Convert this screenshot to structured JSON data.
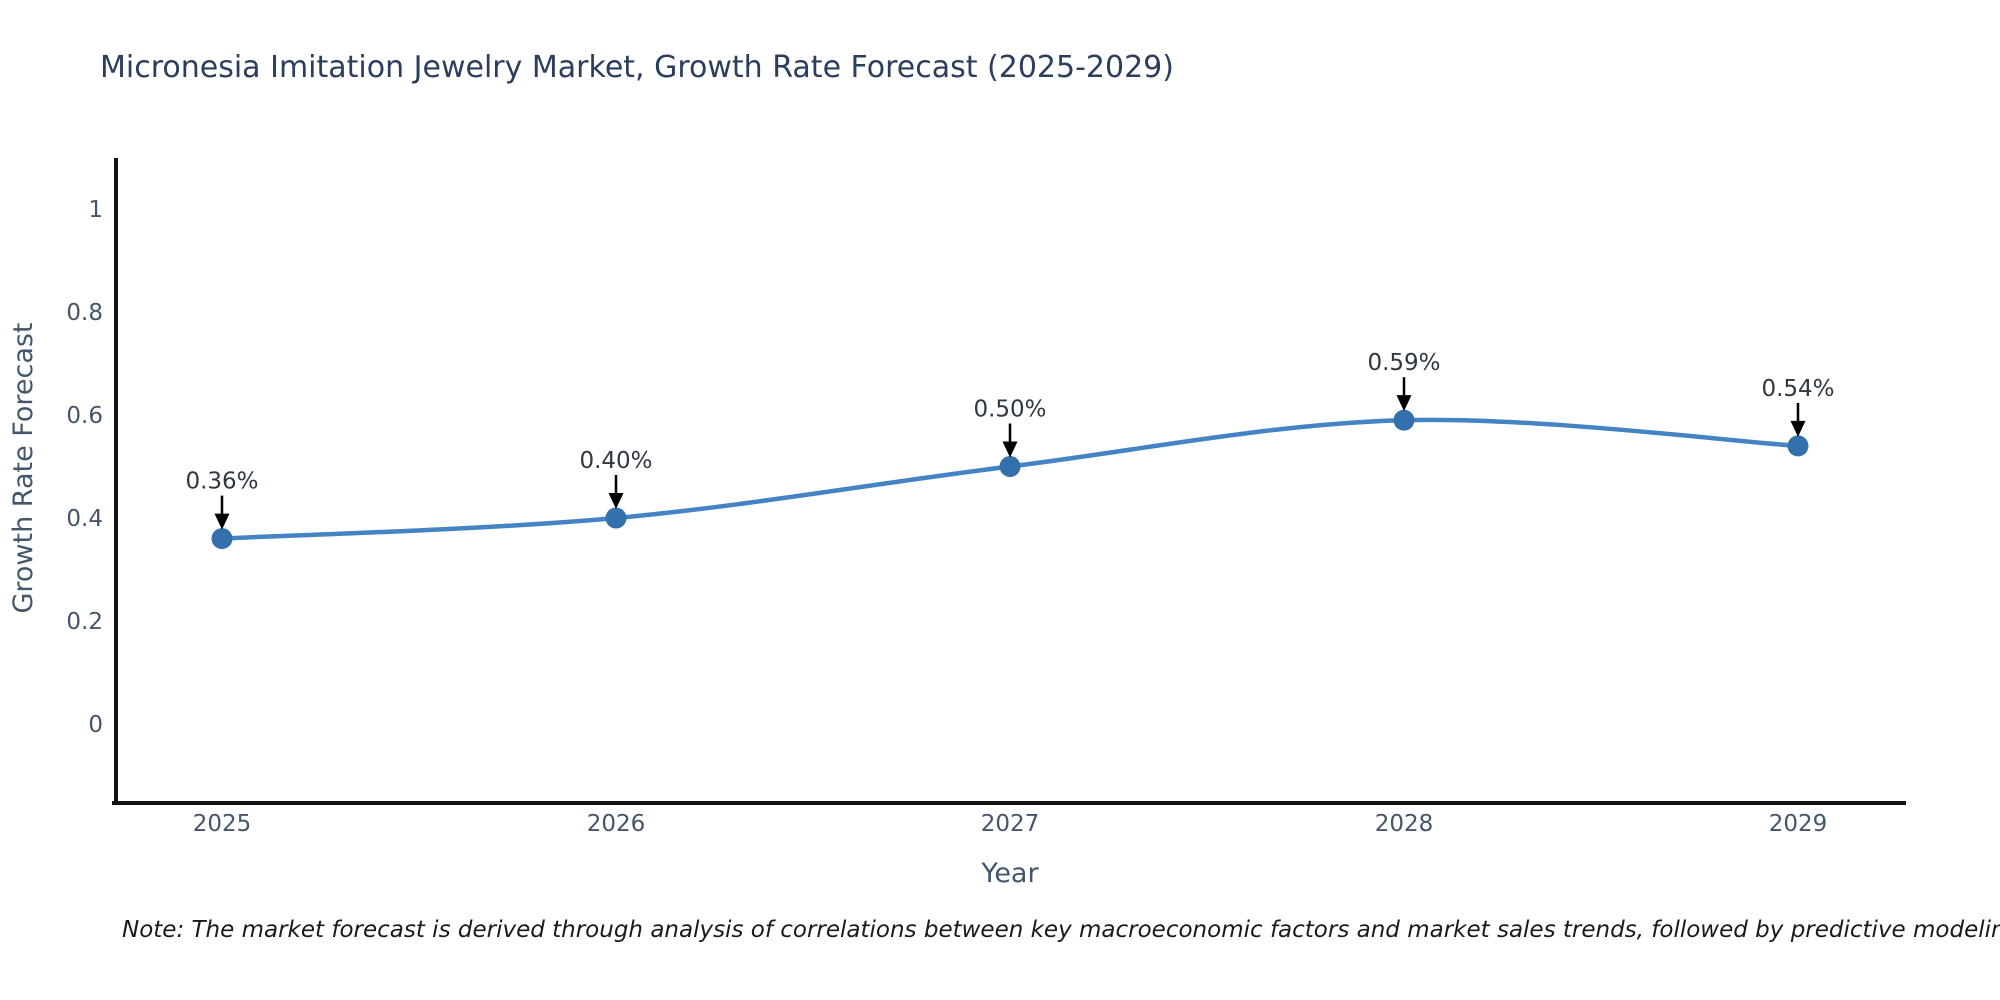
{
  "chart_data": {
    "type": "line",
    "title": "Micronesia Imitation Jewelry Market, Growth Rate Forecast (2025-2029)",
    "xlabel": "Year",
    "ylabel": "Growth Rate Forecast",
    "x": [
      "2025",
      "2026",
      "2027",
      "2028",
      "2029"
    ],
    "series": [
      {
        "name": "Growth Rate Forecast",
        "values": [
          0.36,
          0.4,
          0.5,
          0.59,
          0.54
        ],
        "labels": [
          "0.36%",
          "0.40%",
          "0.50%",
          "0.59%",
          "0.54%"
        ]
      }
    ],
    "yticks": [
      0,
      0.2,
      0.4,
      0.6,
      0.8,
      1
    ],
    "ytick_labels": [
      "0",
      "0.2",
      "0.4",
      "0.6",
      "0.8",
      "1"
    ],
    "ylim": [
      -0.16,
      1.1
    ],
    "grid": false,
    "legend": "none",
    "line_shape": "spline",
    "annotation_style": "arrow-down-to-point",
    "colors": {
      "line": "#4484c4",
      "marker": "#3470ab",
      "arrow": "#000000",
      "axis": "#131313",
      "title": "#2c3e5d",
      "tick": "#44566b",
      "annotation": "#2f3740",
      "background": "#ffffff"
    }
  },
  "note": "Note: The market forecast is derived through analysis of correlations between key macroeconomic factors and market sales trends, followed by predictive modeling to project future sales performance"
}
